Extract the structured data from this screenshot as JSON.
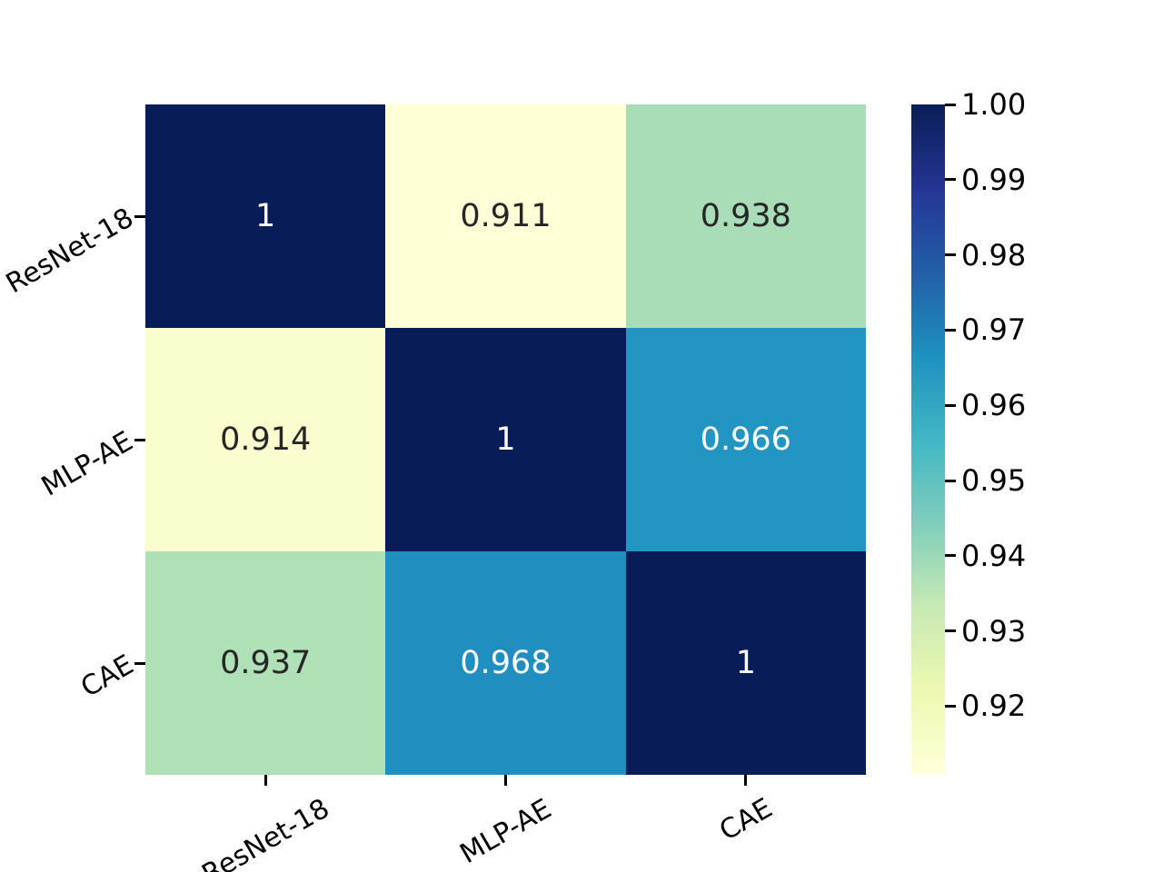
{
  "chart_data": {
    "type": "heatmap",
    "title": "",
    "xlabel": "",
    "ylabel": "",
    "categories": [
      "ResNet-18",
      "MLP-AE",
      "CAE"
    ],
    "x_tick_labels": [
      "ResNet-18",
      "MLP-AE",
      "CAE"
    ],
    "y_tick_labels": [
      "ResNet-18",
      "MLP-AE",
      "CAE"
    ],
    "matrix": [
      [
        1,
        0.911,
        0.938
      ],
      [
        0.914,
        1,
        0.966
      ],
      [
        0.937,
        0.968,
        1
      ]
    ],
    "cell_labels": [
      [
        "1",
        "0.911",
        "0.938"
      ],
      [
        "0.914",
        "1",
        "0.966"
      ],
      [
        "0.937",
        "0.968",
        "1"
      ]
    ],
    "cell_colors": [
      [
        "#081d58",
        "#feffd7",
        "#a8ddb7"
      ],
      [
        "#fafdce",
        "#081d58",
        "#2295c3"
      ],
      [
        "#afe0b6",
        "#208fc0",
        "#081d58"
      ]
    ],
    "cell_text_colors": [
      [
        "#ffffff",
        "#262626",
        "#262626"
      ],
      [
        "#262626",
        "#ffffff",
        "#ffffff"
      ],
      [
        "#262626",
        "#ffffff",
        "#ffffff"
      ]
    ],
    "colormap": "YlGnBu",
    "grid": false,
    "legend_position": "right-colorbar",
    "colorbar": {
      "vmin": 0.911,
      "vmax": 1.0,
      "tick_values": [
        1.0,
        0.99,
        0.98,
        0.97,
        0.96,
        0.95,
        0.94,
        0.93,
        0.92
      ],
      "tick_labels": [
        "1.00",
        "0.99",
        "0.98",
        "0.97",
        "0.96",
        "0.95",
        "0.94",
        "0.93",
        "0.92"
      ],
      "gradient_stops": [
        {
          "color": "#081d58",
          "pos": 0
        },
        {
          "color": "#253494",
          "pos": 12.5
        },
        {
          "color": "#225ea8",
          "pos": 25
        },
        {
          "color": "#1d91c0",
          "pos": 37.5
        },
        {
          "color": "#41b6c4",
          "pos": 50
        },
        {
          "color": "#7fcdbb",
          "pos": 62.5
        },
        {
          "color": "#c7e9b4",
          "pos": 75
        },
        {
          "color": "#edf8b1",
          "pos": 87.5
        },
        {
          "color": "#ffffd9",
          "pos": 100
        }
      ]
    },
    "colors": {
      "background": "#ffffff",
      "tick": "#000000",
      "axis_text": "#000000"
    }
  }
}
